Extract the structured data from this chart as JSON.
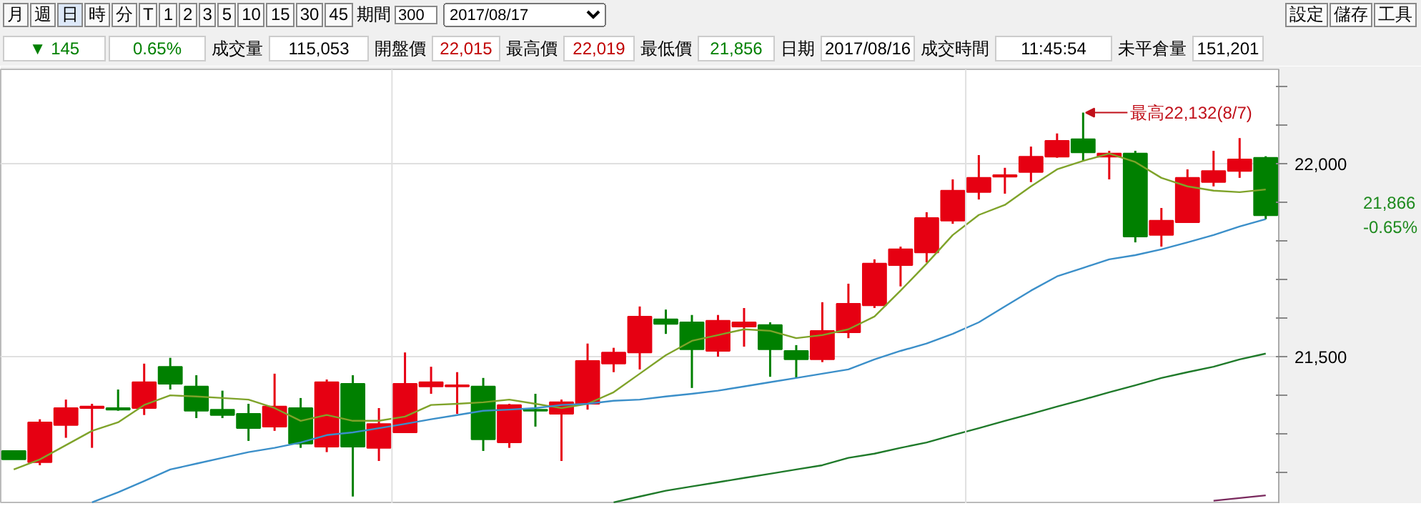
{
  "chart_data": {
    "type": "candlestick",
    "categories": [
      null,
      null,
      null,
      null,
      null,
      null,
      null,
      null,
      null,
      null,
      null,
      null,
      null,
      null,
      null,
      null,
      null,
      null,
      null,
      null,
      null,
      null,
      null,
      null,
      null,
      null,
      null,
      null,
      null,
      null,
      null,
      null,
      null,
      null,
      null,
      null,
      null,
      null,
      null,
      null,
      null,
      null,
      null,
      null,
      null,
      null,
      null,
      null,
      null
    ],
    "ohlc": [
      [
        21256,
        21256,
        21234,
        21234
      ],
      [
        21227,
        21338,
        21219,
        21330
      ],
      [
        21323,
        21389,
        21290,
        21367
      ],
      [
        21367,
        21378,
        21264,
        21371
      ],
      [
        21367,
        21415,
        21360,
        21363
      ],
      [
        21367,
        21482,
        21349,
        21434
      ],
      [
        21474,
        21497,
        21415,
        21430
      ],
      [
        21423,
        21452,
        21341,
        21360
      ],
      [
        21363,
        21412,
        21341,
        21349
      ],
      [
        21352,
        21378,
        21282,
        21315
      ],
      [
        21319,
        21456,
        21308,
        21371
      ],
      [
        21367,
        21393,
        21264,
        21275
      ],
      [
        21267,
        21441,
        21253,
        21434
      ],
      [
        21430,
        21452,
        21138,
        21267
      ],
      [
        21264,
        21367,
        21230,
        21326
      ],
      [
        21304,
        21511,
        21304,
        21430
      ],
      [
        21423,
        21474,
        21404,
        21434
      ],
      [
        21423,
        21460,
        21352,
        21426
      ],
      [
        21423,
        21445,
        21256,
        21286
      ],
      [
        21278,
        21378,
        21264,
        21375
      ],
      [
        21363,
        21404,
        21319,
        21360
      ],
      [
        21352,
        21389,
        21230,
        21382
      ],
      [
        21378,
        21534,
        21363,
        21489
      ],
      [
        21482,
        21523,
        21460,
        21511
      ],
      [
        21511,
        21630,
        21467,
        21604
      ],
      [
        21597,
        21622,
        21559,
        21585
      ],
      [
        21589,
        21608,
        21419,
        21519
      ],
      [
        21515,
        21608,
        21500,
        21593
      ],
      [
        21578,
        21626,
        21526,
        21589
      ],
      [
        21582,
        21589,
        21448,
        21519
      ],
      [
        21515,
        21530,
        21445,
        21493
      ],
      [
        21493,
        21641,
        21486,
        21567
      ],
      [
        21563,
        21689,
        21548,
        21637
      ],
      [
        21633,
        21752,
        21626,
        21741
      ],
      [
        21737,
        21785,
        21682,
        21778
      ],
      [
        21770,
        21874,
        21744,
        21859
      ],
      [
        21852,
        21959,
        21844,
        21930
      ],
      [
        21926,
        22022,
        21907,
        21963
      ],
      [
        21966,
        21989,
        21922,
        21970
      ],
      [
        21978,
        22044,
        21952,
        22018
      ],
      [
        22018,
        22078,
        22015,
        22059
      ],
      [
        22063,
        22132,
        22007,
        22029
      ],
      [
        22018,
        22033,
        21959,
        22026
      ],
      [
        22026,
        22033,
        21796,
        21811
      ],
      [
        21815,
        21885,
        21785,
        21852
      ],
      [
        21848,
        21985,
        21848,
        21963
      ],
      [
        21952,
        22033,
        21941,
        21981
      ],
      [
        21981,
        22066,
        21963,
        22011
      ],
      [
        22015,
        22019,
        21856,
        21866
      ]
    ],
    "colors": [
      "#008000",
      "#e60012",
      "#e60012",
      "#e60012",
      "#008000",
      "#e60012",
      "#008000",
      "#008000",
      "#008000",
      "#008000",
      "#e60012",
      "#008000",
      "#e60012",
      "#008000",
      "#e60012",
      "#e60012",
      "#e60012",
      "#e60012",
      "#008000",
      "#e60012",
      "#008000",
      "#e60012",
      "#e60012",
      "#e60012",
      "#e60012",
      "#008000",
      "#008000",
      "#e60012",
      "#e60012",
      "#008000",
      "#008000",
      "#e60012",
      "#e60012",
      "#e60012",
      "#e60012",
      "#e60012",
      "#e60012",
      "#e60012",
      "#e60012",
      "#e60012",
      "#e60012",
      "#008000",
      "#e60012",
      "#008000",
      "#e60012",
      "#e60012",
      "#e60012",
      "#e60012",
      "#008000"
    ],
    "series": [
      {
        "type": "line",
        "color": "#7fa32a",
        "values": [
          21208,
          21234,
          21271,
          21308,
          21330,
          21375,
          21400,
          21397,
          21393,
          21389,
          21367,
          21334,
          21349,
          21334,
          21334,
          21345,
          21375,
          21378,
          21382,
          21389,
          21378,
          21367,
          21378,
          21408,
          21456,
          21504,
          21541,
          21556,
          21571,
          21567,
          21548,
          21556,
          21571,
          21604,
          21671,
          21741,
          21815,
          21867,
          21893,
          21941,
          21985,
          22007,
          22026,
          22004,
          21963,
          21941,
          21930,
          21926,
          21933
        ]
      },
      {
        "type": "line",
        "color": "#3b8fc9",
        "values": [
          null,
          null,
          null,
          21123,
          21149,
          21178,
          21208,
          21223,
          21238,
          21253,
          21264,
          21278,
          21297,
          21304,
          21315,
          21326,
          21338,
          21349,
          21360,
          21363,
          21367,
          21375,
          21378,
          21386,
          21389,
          21397,
          21404,
          21412,
          21423,
          21434,
          21445,
          21456,
          21467,
          21493,
          21515,
          21534,
          21559,
          21589,
          21630,
          21671,
          21708,
          21730,
          21752,
          21763,
          21778,
          21796,
          21815,
          21837,
          21856
        ]
      },
      {
        "type": "line",
        "color": "#1f7a2a",
        "values": [
          null,
          null,
          null,
          null,
          null,
          null,
          null,
          null,
          null,
          null,
          null,
          null,
          null,
          null,
          null,
          null,
          null,
          null,
          null,
          null,
          null,
          null,
          null,
          21123,
          21138,
          21153,
          21164,
          21175,
          21186,
          21197,
          21208,
          21219,
          21238,
          21249,
          21264,
          21278,
          21297,
          21315,
          21334,
          21352,
          21371,
          21389,
          21408,
          21426,
          21445,
          21460,
          21474,
          21493,
          21508
        ]
      },
      {
        "type": "line",
        "color": "#7a2a5e",
        "values": [
          null,
          null,
          null,
          null,
          null,
          null,
          null,
          null,
          null,
          null,
          null,
          null,
          null,
          null,
          null,
          null,
          null,
          null,
          null,
          null,
          null,
          null,
          null,
          null,
          null,
          null,
          null,
          null,
          null,
          null,
          null,
          null,
          null,
          null,
          null,
          null,
          null,
          null,
          null,
          null,
          null,
          null,
          null,
          null,
          null,
          null,
          21127,
          21134,
          21141
        ]
      }
    ],
    "ylim": [
      21119,
      22244
    ],
    "yticks": [
      {
        "value": 21200,
        "label": null
      },
      {
        "value": 21300,
        "label": null
      },
      {
        "value": 21400,
        "label": null
      },
      {
        "value": 21500,
        "label": "21,500"
      },
      {
        "value": 21600,
        "label": null
      },
      {
        "value": 21700,
        "label": null
      },
      {
        "value": 21800,
        "label": null
      },
      {
        "value": 21900,
        "label": null
      },
      {
        "value": 22000,
        "label": "22,000"
      },
      {
        "value": 22100,
        "label": null
      },
      {
        "value": 22200,
        "label": null
      }
    ],
    "grid": "y",
    "annotations": [
      "月",
      "週",
      "日",
      "時",
      "分",
      "T",
      "1",
      "2",
      "3",
      "5",
      "10",
      "15",
      "30",
      "45",
      "期間",
      "300",
      "2017/08/17",
      "設定",
      "儲存",
      "工具",
      "▼ 145",
      "0.65%",
      "成交量",
      "115,053",
      "開盤價",
      "22,015",
      "最高價",
      "22,019",
      "最低價",
      "21,856",
      "日期",
      "2017/08/16",
      "成交時間",
      "11:45:54",
      "未平倉量",
      "151,201",
      "最高22,132(8/7)",
      "21,866\n-0.65%"
    ]
  }
}
